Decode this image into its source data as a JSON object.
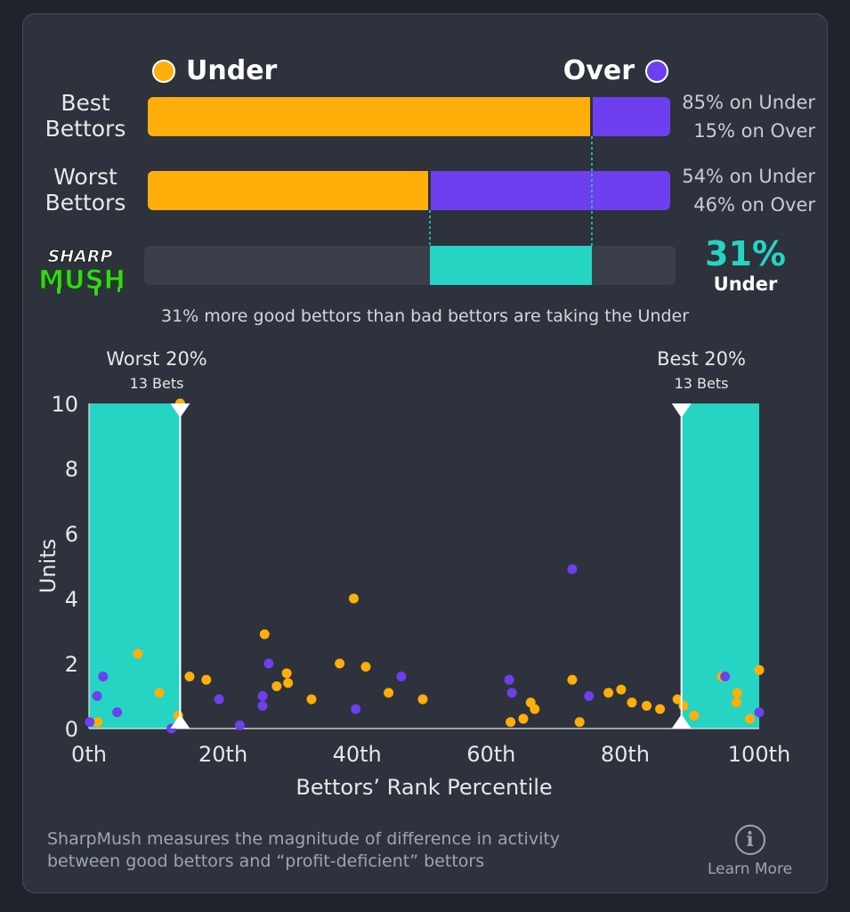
{
  "legend": {
    "under_label": "Under",
    "over_label": "Over",
    "under_color": "#ffae0a",
    "over_color": "#6e3fef"
  },
  "rows": [
    {
      "label_line1": "Best",
      "label_line2": "Bettors",
      "under_pct": 85,
      "over_pct": 15,
      "under_text": "85% on Under",
      "over_text": "15% on Over"
    },
    {
      "label_line1": "Worst",
      "label_line2": "Bettors",
      "under_pct": 54,
      "over_pct": 46,
      "under_text": "54% on Under",
      "over_text": "46% on Over"
    }
  ],
  "sharpmush": {
    "logo_line1": "SHARP",
    "logo_line2": "MUSH",
    "value": "31%",
    "side": "Under",
    "diff_pct": 31,
    "color": "#26d4c4"
  },
  "summary": "31% more good bettors than bad bettors are taking the Under",
  "worst_zone": {
    "title": "Worst 20%",
    "subtitle": "13 Bets"
  },
  "best_zone": {
    "title": "Best 20%",
    "subtitle": "13 Bets"
  },
  "chart_data": {
    "type": "scatter",
    "xlabel": "Bettors’ Rank Percentile",
    "ylabel": "Units",
    "xlim": [
      0,
      100
    ],
    "ylim": [
      0,
      10
    ],
    "x_ticks": [
      0,
      20,
      40,
      60,
      80,
      100
    ],
    "x_tick_labels": [
      "0th",
      "20th",
      "40th",
      "60th",
      "80th",
      "100th"
    ],
    "y_ticks": [
      0,
      2,
      4,
      6,
      8,
      10
    ],
    "y_tick_labels": [
      "0",
      "2",
      "4",
      "6",
      "8",
      "10"
    ],
    "highlight_ranges": [
      [
        0,
        13.6
      ],
      [
        88.4,
        100
      ]
    ],
    "series": [
      {
        "name": "Under",
        "color": "#ffae0a",
        "points": [
          [
            1.3,
            0.2
          ],
          [
            7.3,
            2.3
          ],
          [
            10.5,
            1.1
          ],
          [
            13.3,
            0.4
          ],
          [
            13.6,
            10
          ],
          [
            15,
            1.6
          ],
          [
            17.5,
            1.5
          ],
          [
            26.2,
            2.9
          ],
          [
            28,
            1.3
          ],
          [
            29.5,
            1.7
          ],
          [
            29.7,
            1.4
          ],
          [
            33.2,
            0.9
          ],
          [
            37.4,
            2.0
          ],
          [
            39.5,
            4.0
          ],
          [
            41.3,
            1.9
          ],
          [
            44.7,
            1.1
          ],
          [
            49.8,
            0.9
          ],
          [
            62.9,
            0.2
          ],
          [
            64.8,
            0.3
          ],
          [
            65.9,
            0.8
          ],
          [
            66.5,
            0.6
          ],
          [
            72.1,
            1.5
          ],
          [
            73.2,
            0.2
          ],
          [
            77.5,
            1.1
          ],
          [
            79.4,
            1.2
          ],
          [
            81,
            0.8
          ],
          [
            83.2,
            0.7
          ],
          [
            85.2,
            0.6
          ],
          [
            87.8,
            0.9
          ],
          [
            88.7,
            0.7
          ],
          [
            90.3,
            0.4
          ],
          [
            94.4,
            1.6
          ],
          [
            96.6,
            0.8
          ],
          [
            96.7,
            1.1
          ],
          [
            98.6,
            0.3
          ],
          [
            100,
            1.8
          ]
        ]
      },
      {
        "name": "Over",
        "color": "#6e3fef",
        "points": [
          [
            0.1,
            0.2
          ],
          [
            1.2,
            1.0
          ],
          [
            2.1,
            1.6
          ],
          [
            4.2,
            0.5
          ],
          [
            12.3,
            0.0
          ],
          [
            19.4,
            0.9
          ],
          [
            22.5,
            0.1
          ],
          [
            25.9,
            1.0
          ],
          [
            25.9,
            0.7
          ],
          [
            26.8,
            2.0
          ],
          [
            39.8,
            0.6
          ],
          [
            46.6,
            1.6
          ],
          [
            62.7,
            1.5
          ],
          [
            63.1,
            1.1
          ],
          [
            72.1,
            4.9
          ],
          [
            74.6,
            1.0
          ],
          [
            94.9,
            1.6
          ],
          [
            100,
            0.5
          ]
        ]
      }
    ]
  },
  "footnote": {
    "line1": "SharpMush measures the magnitude of difference in activity",
    "line2": "between good bettors and “profit-deficient” bettors"
  },
  "learn_more": {
    "icon_glyph": "i",
    "label": "Learn More"
  }
}
